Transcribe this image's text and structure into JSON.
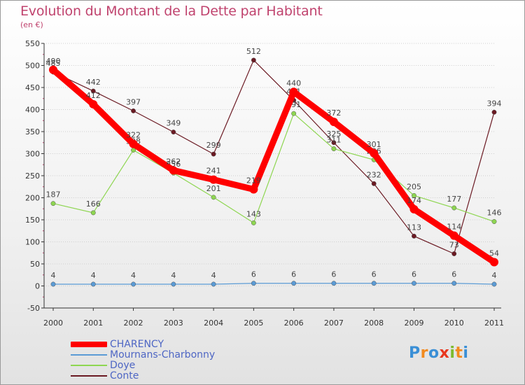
{
  "chart_data": {
    "type": "line",
    "title": "Evolution du Montant de la Dette par Habitant",
    "subtitle": "(en €)",
    "xlabel": "",
    "ylabel": "",
    "ylim": [
      -50,
      550
    ],
    "yticks": [
      -50,
      0,
      50,
      100,
      150,
      200,
      250,
      300,
      350,
      400,
      450,
      500,
      550
    ],
    "grid": "horizontal",
    "categories": [
      "2000",
      "2001",
      "2002",
      "2003",
      "2004",
      "2005",
      "2006",
      "2007",
      "2008",
      "2009",
      "2010",
      "2011"
    ],
    "series": [
      {
        "name": "Conte",
        "color": "#6b1a23",
        "style": "thin",
        "values": [
          485,
          442,
          397,
          349,
          299,
          512,
          421,
          325,
          232,
          113,
          73,
          394
        ]
      },
      {
        "name": "Doye",
        "color": "#8ed651",
        "style": "thin",
        "values": [
          187,
          166,
          308,
          256,
          201,
          143,
          391,
          311,
          286,
          205,
          177,
          146
        ]
      },
      {
        "name": "Mournans-Charbonny",
        "color": "#5b9bd5",
        "style": "thin",
        "values": [
          4,
          4,
          4,
          4,
          4,
          6,
          6,
          6,
          6,
          6,
          6,
          4
        ]
      },
      {
        "name": "CHARENCY",
        "color": "#ff0000",
        "style": "thick",
        "values": [
          490,
          412,
          322,
          262,
          241,
          219,
          440,
          372,
          301,
          174,
          114,
          54
        ]
      }
    ]
  },
  "legend": [
    {
      "name": "CHARENCY",
      "color": "#ff0000",
      "style": "thick"
    },
    {
      "name": "Mournans-Charbonny",
      "color": "#5b9bd5",
      "style": "thin"
    },
    {
      "name": "Doye",
      "color": "#8ed651",
      "style": "thin"
    },
    {
      "name": "Conte",
      "color": "#6b1a23",
      "style": "thin"
    }
  ],
  "logo": {
    "text": "Proxiti",
    "letters": [
      "P",
      "r",
      "o",
      "x",
      "i",
      "t",
      "i"
    ],
    "colors": [
      "#3a8fd6",
      "#f28a1e",
      "#3a8fd6",
      "#e8361e",
      "#7dbb2e",
      "#f28a1e",
      "#3a8fd6"
    ]
  }
}
